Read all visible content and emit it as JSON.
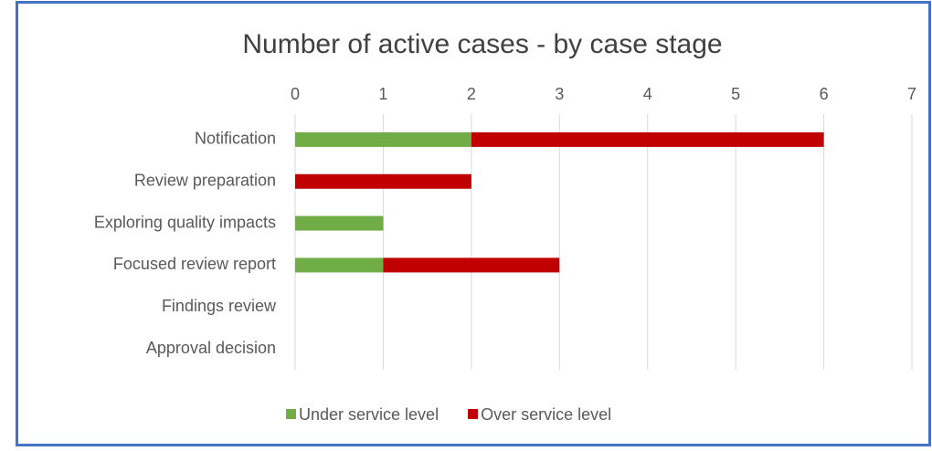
{
  "chart_data": {
    "type": "stacked_barh",
    "title": "Number of active cases - by case stage",
    "categories": [
      "Notification",
      "Review preparation",
      "Exploring quality impacts",
      "Focused review report",
      "Findings review",
      "Approval decision"
    ],
    "series": [
      {
        "name": "Under service level",
        "color": "#70ad47",
        "values": [
          2,
          0,
          1,
          1,
          0,
          0
        ]
      },
      {
        "name": "Over service level",
        "color": "#c00000",
        "values": [
          4,
          2,
          0,
          2,
          0,
          0
        ]
      }
    ],
    "xlim": [
      0,
      7
    ],
    "xticks": [
      0,
      1,
      2,
      3,
      4,
      5,
      6,
      7
    ],
    "grid": true,
    "legend": "bottom"
  }
}
